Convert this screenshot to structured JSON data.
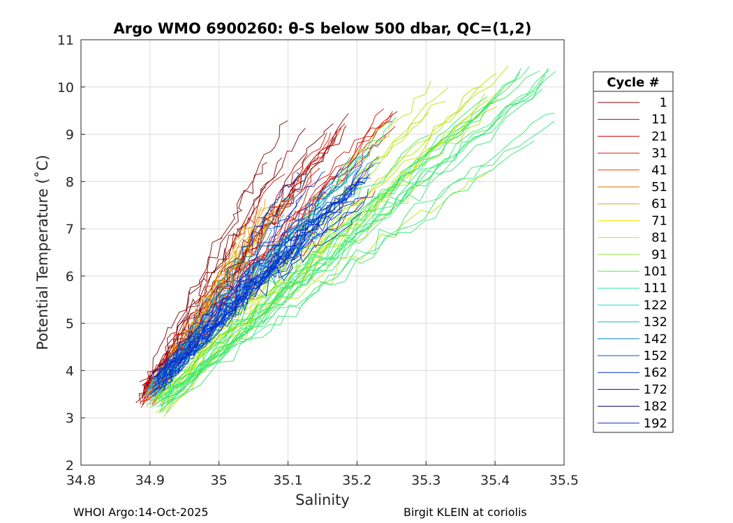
{
  "chart_data": {
    "type": "line",
    "title": "Argo WMO 6900260: θ-S below 500 dbar,  QC=(1,2)",
    "xlabel": "Salinity",
    "ylabel": "Potential Temperature (˚C)",
    "xlim": [
      34.8,
      35.5
    ],
    "ylim": [
      2,
      11
    ],
    "xticks": [
      34.8,
      34.9,
      35,
      35.1,
      35.2,
      35.3,
      35.4,
      35.5
    ],
    "xtick_labels": [
      "34.8",
      "34.9",
      "35",
      "35.1",
      "35.2",
      "35.3",
      "35.4",
      "35.5"
    ],
    "yticks": [
      2,
      3,
      4,
      5,
      6,
      7,
      8,
      9,
      10,
      11
    ],
    "ytick_labels": [
      "2",
      "3",
      "4",
      "5",
      "6",
      "7",
      "8",
      "9",
      "10",
      "11"
    ],
    "grid": true,
    "legend": {
      "title": "Cycle #",
      "placement": "outside-right",
      "entries": [
        {
          "label": "1",
          "color": "#800000"
        },
        {
          "label": "11",
          "color": "#a80000"
        },
        {
          "label": "21",
          "color": "#cc0000"
        },
        {
          "label": "31",
          "color": "#e81c00"
        },
        {
          "label": "41",
          "color": "#ee3800"
        },
        {
          "label": "51",
          "color": "#d96a00"
        },
        {
          "label": "61",
          "color": "#e6a000"
        },
        {
          "label": "71",
          "color": "#f2dc00"
        },
        {
          "label": "81",
          "color": "#c8e600"
        },
        {
          "label": "91",
          "color": "#8ee83c"
        },
        {
          "label": "101",
          "color": "#3ee84a"
        },
        {
          "label": "111",
          "color": "#26e89a"
        },
        {
          "label": "122",
          "color": "#24dcc4"
        },
        {
          "label": "132",
          "color": "#1cb8dc"
        },
        {
          "label": "142",
          "color": "#0a86be"
        },
        {
          "label": "152",
          "color": "#0054c8"
        },
        {
          "label": "162",
          "color": "#0028d0"
        },
        {
          "label": "172",
          "color": "#0010a0"
        },
        {
          "label": "182",
          "color": "#000060"
        },
        {
          "label": "192",
          "color": "#0a28b4"
        }
      ]
    },
    "series_groups": [
      {
        "cycles": "1-20",
        "color": "#800000",
        "start": [
          34.893,
          3.5
        ],
        "end": [
          35.19,
          9.4
        ],
        "count": 12
      },
      {
        "cycles": "21-50",
        "color": "#d01000",
        "start": [
          34.893,
          3.5
        ],
        "end": [
          35.255,
          9.5
        ],
        "count": 16
      },
      {
        "cycles": "51-80",
        "color": "#e6a000",
        "start": [
          34.9,
          3.3
        ],
        "end": [
          35.1,
          7.6
        ],
        "count": 10
      },
      {
        "cycles": "81-100",
        "color": "#b4e400",
        "start": [
          34.91,
          3.3
        ],
        "end": [
          35.42,
          10.45
        ],
        "count": 16
      },
      {
        "cycles": "101-130",
        "color": "#30e870",
        "start": [
          34.915,
          3.3
        ],
        "end": [
          35.49,
          10.4
        ],
        "count": 18
      },
      {
        "cycles": "131-160",
        "color": "#10a4d0",
        "start": [
          34.905,
          3.5
        ],
        "end": [
          35.23,
          8.8
        ],
        "count": 14
      },
      {
        "cycles": "161-192",
        "color": "#0030d0",
        "start": [
          34.91,
          3.7
        ],
        "end": [
          35.22,
          8.3
        ],
        "count": 24
      }
    ]
  },
  "footer": {
    "left": "WHOI Argo:14-Oct-2025",
    "right": "Birgit KLEIN at coriolis"
  }
}
